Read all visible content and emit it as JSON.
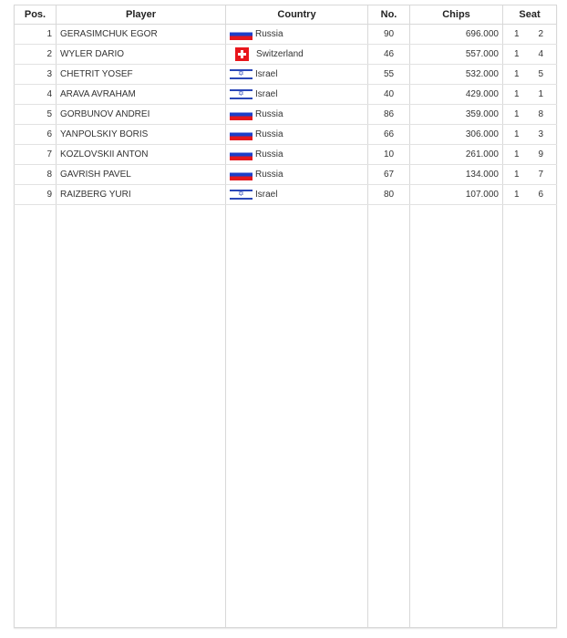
{
  "headers": {
    "pos": "Pos.",
    "player": "Player",
    "country": "Country",
    "no": "No.",
    "chips": "Chips",
    "seat": "Seat"
  },
  "rows": [
    {
      "pos": "1",
      "player": "GERASIMCHUK EGOR",
      "flag": "russia-flag",
      "country": "Russia",
      "no": "90",
      "chips": "696.000",
      "table": "1",
      "seat": "2"
    },
    {
      "pos": "2",
      "player": "WYLER DARIO",
      "flag": "switzerland-flag",
      "country": "Switzerland",
      "no": "46",
      "chips": "557.000",
      "table": "1",
      "seat": "4"
    },
    {
      "pos": "3",
      "player": "CHETRIT YOSEF",
      "flag": "israel-flag",
      "country": "Israel",
      "no": "55",
      "chips": "532.000",
      "table": "1",
      "seat": "5"
    },
    {
      "pos": "4",
      "player": "ARAVA AVRAHAM",
      "flag": "israel-flag",
      "country": "Israel",
      "no": "40",
      "chips": "429.000",
      "table": "1",
      "seat": "1"
    },
    {
      "pos": "5",
      "player": "GORBUNOV ANDREI",
      "flag": "russia-flag",
      "country": "Russia",
      "no": "86",
      "chips": "359.000",
      "table": "1",
      "seat": "8"
    },
    {
      "pos": "6",
      "player": "YANPOLSKIY BORIS",
      "flag": "russia-flag",
      "country": "Russia",
      "no": "66",
      "chips": "306.000",
      "table": "1",
      "seat": "3"
    },
    {
      "pos": "7",
      "player": "KOZLOVSKII ANTON",
      "flag": "russia-flag",
      "country": "Russia",
      "no": "10",
      "chips": "261.000",
      "table": "1",
      "seat": "9"
    },
    {
      "pos": "8",
      "player": "GAVRISH PAVEL",
      "flag": "russia-flag",
      "country": "Russia",
      "no": "67",
      "chips": "134.000",
      "table": "1",
      "seat": "7"
    },
    {
      "pos": "9",
      "player": "RAIZBERG YURI",
      "flag": "israel-flag",
      "country": "Israel",
      "no": "80",
      "chips": "107.000",
      "table": "1",
      "seat": "6"
    }
  ]
}
